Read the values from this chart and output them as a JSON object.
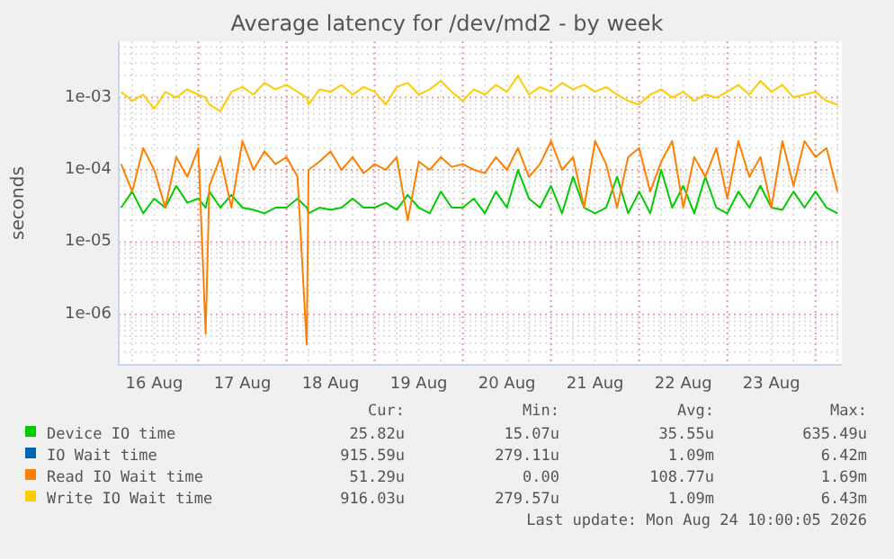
{
  "chart_data": {
    "type": "line",
    "title": "Average latency for /dev/md2 - by week",
    "ylabel": "seconds",
    "log": "y",
    "grid": true,
    "legend": "bottom",
    "xlim": [
      "2026-08-16T02:20",
      "2026-08-24T07:10"
    ],
    "xticks": [
      {
        "value": "2026-08-17T00:00",
        "label": null
      },
      {
        "value": "2026-08-18T00:00",
        "label": null
      },
      {
        "value": "2026-08-19T00:00",
        "label": null
      },
      {
        "value": "2026-08-20T00:00",
        "label": null
      },
      {
        "value": "2026-08-21T00:00",
        "label": null
      },
      {
        "value": "2026-08-22T00:00",
        "label": null
      },
      {
        "value": "2026-08-23T00:00",
        "label": null
      },
      {
        "value": "2026-08-24T00:00",
        "label": null
      },
      {
        "value": "2026-08-16T12:00",
        "label": "16 Aug"
      },
      {
        "value": "2026-08-17T12:00",
        "label": "17 Aug"
      },
      {
        "value": "2026-08-18T12:00",
        "label": "18 Aug"
      },
      {
        "value": "2026-08-19T12:00",
        "label": "19 Aug"
      },
      {
        "value": "2026-08-20T12:00",
        "label": "20 Aug"
      },
      {
        "value": "2026-08-21T12:00",
        "label": "21 Aug"
      },
      {
        "value": "2026-08-22T12:00",
        "label": "22 Aug"
      },
      {
        "value": "2026-08-23T12:00",
        "label": "23 Aug"
      }
    ],
    "ylim": [
      2e-07,
      0.006
    ],
    "yticks": [
      {
        "value": 1e-06,
        "label": "1e-06"
      },
      {
        "value": 1e-05,
        "label": "1e-05"
      },
      {
        "value": 0.0001,
        "label": "1e-04"
      },
      {
        "value": 0.001,
        "label": "1e-03"
      }
    ],
    "x": [
      "2026-08-16T03:00",
      "2026-08-16T06:00",
      "2026-08-16T09:00",
      "2026-08-16T12:00",
      "2026-08-16T15:00",
      "2026-08-16T18:00",
      "2026-08-16T21:00",
      "2026-08-17T00:00",
      "2026-08-17T02:00",
      "2026-08-17T03:00",
      "2026-08-17T06:00",
      "2026-08-17T09:00",
      "2026-08-17T12:00",
      "2026-08-17T15:00",
      "2026-08-17T18:00",
      "2026-08-17T21:00",
      "2026-08-18T00:00",
      "2026-08-18T03:00",
      "2026-08-18T05:30",
      "2026-08-18T06:00",
      "2026-08-18T09:00",
      "2026-08-18T12:00",
      "2026-08-18T15:00",
      "2026-08-18T18:00",
      "2026-08-18T21:00",
      "2026-08-19T00:00",
      "2026-08-19T03:00",
      "2026-08-19T06:00",
      "2026-08-19T09:00",
      "2026-08-19T12:00",
      "2026-08-19T15:00",
      "2026-08-19T18:00",
      "2026-08-19T21:00",
      "2026-08-20T00:00",
      "2026-08-20T03:00",
      "2026-08-20T06:00",
      "2026-08-20T09:00",
      "2026-08-20T12:00",
      "2026-08-20T15:00",
      "2026-08-20T18:00",
      "2026-08-20T21:00",
      "2026-08-21T00:00",
      "2026-08-21T03:00",
      "2026-08-21T06:00",
      "2026-08-21T09:00",
      "2026-08-21T12:00",
      "2026-08-21T15:00",
      "2026-08-21T18:00",
      "2026-08-21T21:00",
      "2026-08-22T00:00",
      "2026-08-22T03:00",
      "2026-08-22T06:00",
      "2026-08-22T09:00",
      "2026-08-22T12:00",
      "2026-08-22T15:00",
      "2026-08-22T18:00",
      "2026-08-22T21:00",
      "2026-08-23T00:00",
      "2026-08-23T03:00",
      "2026-08-23T06:00",
      "2026-08-23T09:00",
      "2026-08-23T12:00",
      "2026-08-23T15:00",
      "2026-08-23T18:00",
      "2026-08-23T21:00",
      "2026-08-24T00:00",
      "2026-08-24T03:00",
      "2026-08-24T06:00"
    ],
    "series": [
      {
        "name": "Device IO time",
        "color": "#00cc00",
        "values": [
          3e-05,
          5e-05,
          2.5e-05,
          4e-05,
          3e-05,
          6e-05,
          3.5e-05,
          4e-05,
          3e-05,
          5e-05,
          3e-05,
          4.5e-05,
          3e-05,
          2.8e-05,
          2.5e-05,
          3e-05,
          3e-05,
          4e-05,
          3e-05,
          2.5e-05,
          3e-05,
          2.8e-05,
          3e-05,
          4e-05,
          3e-05,
          3e-05,
          3.5e-05,
          2.8e-05,
          4.5e-05,
          3e-05,
          2.5e-05,
          5e-05,
          3e-05,
          3e-05,
          4e-05,
          2.5e-05,
          5e-05,
          3e-05,
          0.0001,
          4e-05,
          3e-05,
          6e-05,
          2.5e-05,
          8e-05,
          3e-05,
          2.5e-05,
          3e-05,
          8e-05,
          2.5e-05,
          5e-05,
          2.5e-05,
          0.0001,
          3e-05,
          6e-05,
          2.5e-05,
          8e-05,
          3e-05,
          2.5e-05,
          5e-05,
          3e-05,
          6e-05,
          3e-05,
          2.8e-05,
          5e-05,
          3e-05,
          5e-05,
          3e-05,
          2.5e-05
        ]
      },
      {
        "name": "IO Wait time",
        "color": "#0066b3",
        "values": [
          null,
          null,
          null,
          null,
          null,
          null,
          null,
          null,
          null,
          null,
          null,
          null,
          null,
          null,
          null,
          null,
          null,
          null,
          null,
          null,
          null,
          null,
          null,
          null,
          null,
          null,
          null,
          null,
          null,
          null,
          null,
          null,
          null,
          null,
          null,
          null,
          null,
          null,
          null,
          null,
          null,
          null,
          null,
          null,
          null,
          null,
          null,
          null,
          null,
          null,
          null,
          null,
          null,
          null,
          null,
          null,
          null,
          null,
          null,
          null,
          null,
          null,
          null,
          null,
          null,
          null,
          null,
          null
        ]
      },
      {
        "name": "Read IO Wait time",
        "color": "#ff8000",
        "values": [
          0.00012,
          5e-05,
          0.0002,
          0.0001,
          3e-05,
          0.00015,
          8e-05,
          0.0002,
          5.4e-07,
          6e-05,
          0.00015,
          3e-05,
          0.00025,
          0.0001,
          0.00018,
          0.00012,
          0.00015,
          8e-05,
          3.8e-07,
          0.0001,
          0.00013,
          0.00018,
          0.0001,
          0.00015,
          9e-05,
          0.00012,
          0.0001,
          0.00015,
          2e-05,
          0.00013,
          0.0001,
          0.00015,
          0.00011,
          0.00012,
          0.0001,
          9e-05,
          0.00015,
          0.0001,
          0.0002,
          8e-05,
          0.00012,
          0.00025,
          0.0001,
          0.00015,
          3e-05,
          0.00025,
          0.00012,
          3e-05,
          0.00015,
          0.0002,
          5e-05,
          0.00013,
          0.00025,
          3e-05,
          0.00015,
          8e-05,
          0.0002,
          4e-05,
          0.00025,
          8e-05,
          0.00015,
          3e-05,
          0.00025,
          6e-05,
          0.00025,
          0.00015,
          0.0002,
          5e-05
        ]
      },
      {
        "name": "Write IO Wait time",
        "color": "#ffcc00",
        "values": [
          0.0012,
          0.0009,
          0.0011,
          0.0007,
          0.0012,
          0.001,
          0.0013,
          0.0011,
          0.001,
          0.0008,
          0.00065,
          0.0012,
          0.0014,
          0.0011,
          0.0016,
          0.0013,
          0.0015,
          0.0012,
          0.001,
          0.0008,
          0.0013,
          0.0012,
          0.0015,
          0.0011,
          0.0014,
          0.0012,
          0.0008,
          0.0014,
          0.0016,
          0.0011,
          0.0013,
          0.0017,
          0.0012,
          0.0009,
          0.0013,
          0.0011,
          0.0015,
          0.0012,
          0.002,
          0.0011,
          0.0014,
          0.0012,
          0.0016,
          0.0013,
          0.0015,
          0.0012,
          0.0014,
          0.0011,
          0.0009,
          0.0008,
          0.0011,
          0.0013,
          0.001,
          0.0012,
          0.0009,
          0.0011,
          0.001,
          0.0012,
          0.0015,
          0.0011,
          0.0017,
          0.0012,
          0.0015,
          0.001,
          0.0011,
          0.0012,
          0.0009,
          0.0008
        ]
      }
    ],
    "annotations": [
      "Cur:",
      "Min:",
      "Avg:",
      "Max:",
      "25.82u",
      "15.07u",
      "35.55u",
      "635.49u",
      "915.59u",
      "279.11u",
      "1.09m",
      "6.42m",
      "51.29u",
      "0.00",
      "108.77u",
      "1.69m",
      "916.03u",
      "279.57u",
      "1.09m",
      "6.43m",
      "Last update: Mon Aug 24 10:00:05 2026"
    ]
  }
}
